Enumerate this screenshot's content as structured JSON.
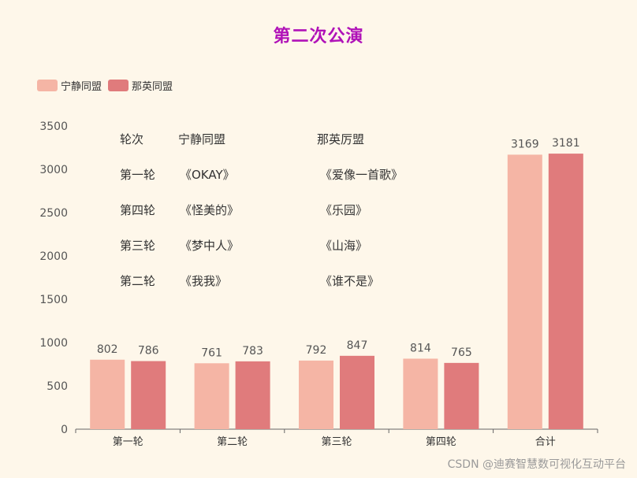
{
  "colors": {
    "series0": "#f5b5a5",
    "series1": "#e07b7c",
    "title": "#b012b8"
  },
  "chart_data": {
    "type": "bar",
    "title": "第二次公演",
    "categories": [
      "第一轮",
      "第二轮",
      "第三轮",
      "第四轮",
      "合计"
    ],
    "series": [
      {
        "name": "宁静同盟",
        "values": [
          802,
          761,
          792,
          814,
          3169
        ]
      },
      {
        "name": "那英同盟",
        "values": [
          786,
          783,
          847,
          765,
          3181
        ]
      }
    ],
    "ylim": [
      0,
      3500
    ],
    "yticks": [
      0,
      500,
      1000,
      1500,
      2000,
      2500,
      3000,
      3500
    ],
    "legend_position": "top-left",
    "grid": false
  },
  "annotation_table": {
    "header": [
      "轮次",
      "宁静同盟",
      "那英厉盟"
    ],
    "rows": [
      [
        "第一轮",
        "《OKAY》",
        "《爱像一首歌》"
      ],
      [
        "第四轮",
        "《怪美的》",
        "《乐园》"
      ],
      [
        "第三轮",
        "《梦中人》",
        "《山海》"
      ],
      [
        "第二轮",
        "《我我》",
        "《谁不是》"
      ]
    ]
  },
  "watermark": "CSDN @迪赛智慧数可视化互动平台"
}
